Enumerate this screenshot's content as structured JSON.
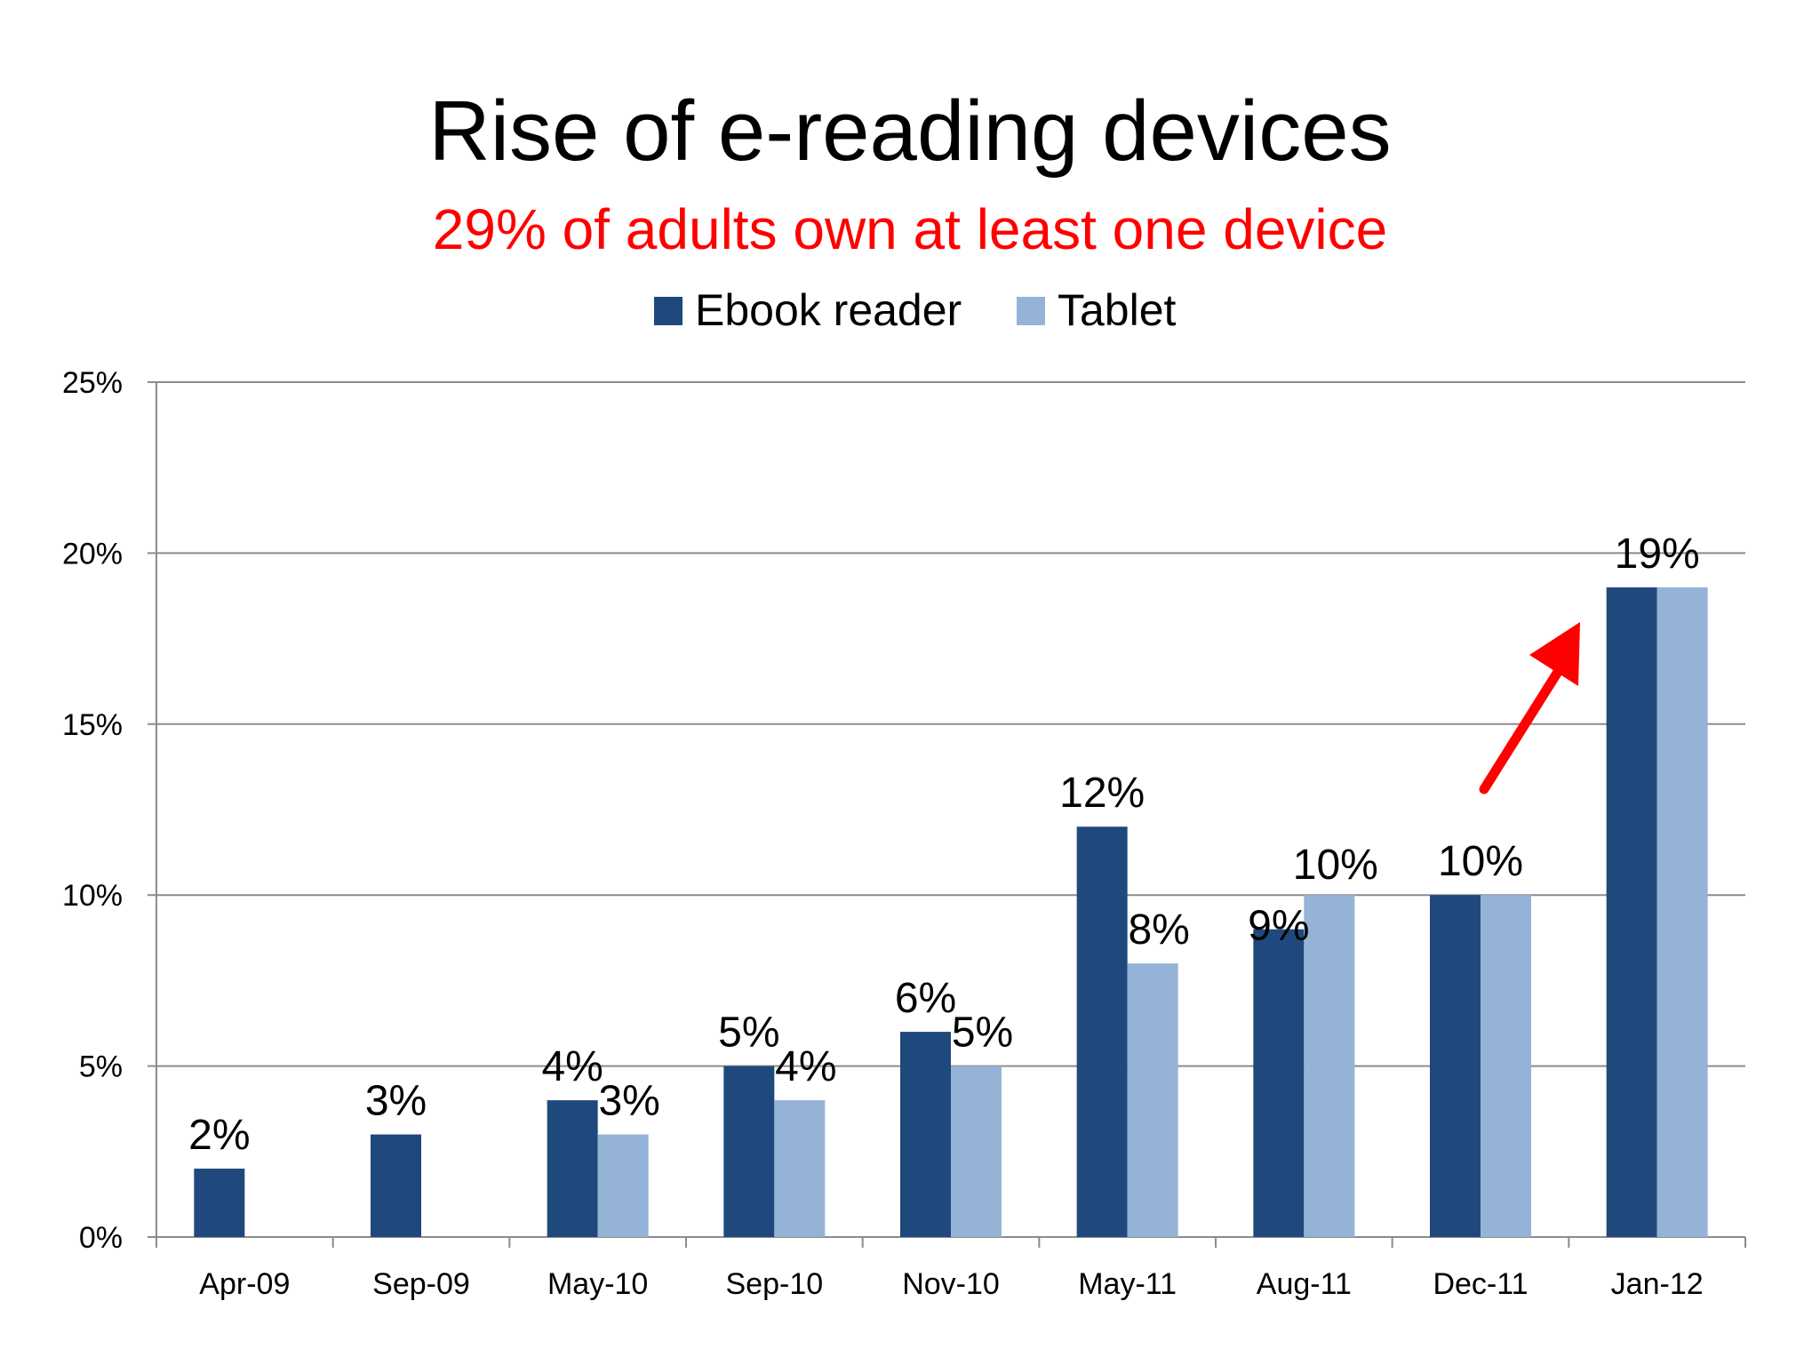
{
  "chart_data": {
    "type": "bar",
    "title": "Rise of e-reading devices",
    "subtitle": "29% of adults own at least one device",
    "categories": [
      "Apr-09",
      "Sep-09",
      "May-10",
      "Sep-10",
      "Nov-10",
      "May-11",
      "Aug-11",
      "Dec-11",
      "Jan-12"
    ],
    "series": [
      {
        "name": "Ebook reader",
        "color": "#1f497d",
        "values": [
          2,
          3,
          4,
          5,
          6,
          12,
          9,
          10,
          19
        ],
        "labels": [
          "2%",
          "3%",
          "4%",
          "5%",
          "6%",
          "12%",
          "9%",
          "10%",
          "19%"
        ]
      },
      {
        "name": "Tablet",
        "color": "#95b3d7",
        "values": [
          null,
          null,
          3,
          4,
          5,
          8,
          10,
          10,
          19
        ],
        "labels": [
          "",
          "",
          "3%",
          "4%",
          "5%",
          "8%",
          "10%",
          "",
          ""
        ]
      }
    ],
    "ylim": [
      0,
      25
    ],
    "yticks": [
      0,
      5,
      10,
      15,
      20,
      25
    ],
    "ytick_labels": [
      "0%",
      "5%",
      "10%",
      "15%",
      "20%",
      "25%"
    ],
    "grid": true,
    "legend_position": "top-center",
    "annotation": {
      "type": "arrow",
      "color": "#ff0000",
      "points_to": "Jan-12"
    }
  }
}
